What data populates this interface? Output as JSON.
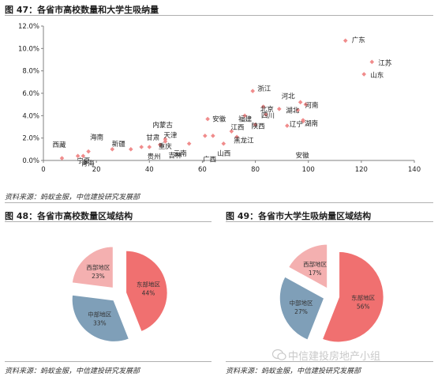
{
  "fig47": {
    "title": "图 47：各省市高校数量和大学生吸纳量",
    "source": "资料来源：蚂蚁金服，中信建投研究发展部"
  },
  "fig48": {
    "title": "图 48：各省市高校数量区域结构",
    "source": "资料来源：蚂蚁金服，中信建投研究发展部"
  },
  "fig49": {
    "title": "图 49：各省市大学生吸纳量区域结构",
    "source": "资料来源：蚂蚁金服，中信建投研究发展部"
  },
  "watermark": {
    "text": "中信建投房地产小组",
    "icon": "wechat-icon"
  },
  "colors": {
    "marker": "#f08c8c",
    "east": "#f07070",
    "central": "#7f9fb8",
    "west": "#f4b0b0"
  },
  "chart_data": [
    {
      "type": "scatter",
      "title": "",
      "xlabel": "",
      "ylabel": "",
      "xlim": [
        0,
        140
      ],
      "ylim": [
        0,
        0.12
      ],
      "xticks": [
        "0",
        "20",
        "40",
        "60",
        "80",
        "100",
        "120",
        "140"
      ],
      "yticks": [
        "0.0%",
        "2.0%",
        "4.0%",
        "6.0%",
        "8.0%",
        "10.0%",
        "12.0%"
      ],
      "grid": false,
      "points": [
        {
          "x": 114,
          "y": 0.107,
          "label": "广东"
        },
        {
          "x": 124,
          "y": 0.088,
          "label": "江苏"
        },
        {
          "x": 121,
          "y": 0.077,
          "label": "山东"
        },
        {
          "x": 79,
          "y": 0.062,
          "label": "浙江"
        },
        {
          "x": 97,
          "y": 0.052,
          "label": "河北"
        },
        {
          "x": 99,
          "y": 0.05,
          "label": "河南"
        },
        {
          "x": 96,
          "y": 0.045,
          "label": "湖北"
        },
        {
          "x": 89,
          "y": 0.046,
          "label": "北京"
        },
        {
          "x": 83,
          "y": 0.048,
          "label": ""
        },
        {
          "x": 84,
          "y": 0.041,
          "label": "四川"
        },
        {
          "x": 76,
          "y": 0.04,
          "label": "福建"
        },
        {
          "x": 98,
          "y": 0.036,
          "label": "湖南"
        },
        {
          "x": 92,
          "y": 0.031,
          "label": "辽宁"
        },
        {
          "x": 80,
          "y": 0.032,
          "label": "陕西"
        },
        {
          "x": 71,
          "y": 0.026,
          "label": "江西"
        },
        {
          "x": 62,
          "y": 0.037,
          "label": "安徽"
        },
        {
          "x": 98,
          "y": 0.035,
          "label": ""
        },
        {
          "x": 73,
          "y": 0.021,
          "label": "黑龙江"
        },
        {
          "x": 64,
          "y": 0.022,
          "label": ""
        },
        {
          "x": 61,
          "y": 0.022,
          "label": ""
        },
        {
          "x": 55,
          "y": 0.015,
          "label": "云南"
        },
        {
          "x": 68,
          "y": 0.015,
          "label": "山西"
        },
        {
          "x": 46,
          "y": 0.017,
          "label": "天津"
        },
        {
          "x": 46,
          "y": 0.019,
          "label": "内蒙古"
        },
        {
          "x": 44,
          "y": 0.014,
          "label": "重庆"
        },
        {
          "x": 40,
          "y": 0.012,
          "label": "甘肃"
        },
        {
          "x": 37,
          "y": 0.012,
          "label": ""
        },
        {
          "x": 33,
          "y": 0.01,
          "label": "新疆"
        },
        {
          "x": 26,
          "y": 0.01,
          "label": ""
        },
        {
          "x": 17,
          "y": 0.008,
          "label": "海南"
        },
        {
          "x": 15,
          "y": 0.004,
          "label": "宁夏"
        },
        {
          "x": 13,
          "y": 0.004,
          "label": "青海"
        },
        {
          "x": 7,
          "y": 0.002,
          "label": "西藏"
        }
      ],
      "extra_labels": [
        "贵州",
        "吉林",
        "广西",
        "安徽"
      ]
    },
    {
      "type": "pie",
      "title": "",
      "slices": [
        {
          "name": "东部地区",
          "value": 44,
          "label": "44%",
          "color": "#f07070"
        },
        {
          "name": "中部地区",
          "value": 33,
          "label": "33%",
          "color": "#7f9fb8"
        },
        {
          "name": "西部地区",
          "value": 23,
          "label": "23%",
          "color": "#f4b0b0"
        }
      ]
    },
    {
      "type": "pie",
      "title": "",
      "slices": [
        {
          "name": "东部地区",
          "value": 56,
          "label": "56%",
          "color": "#f07070"
        },
        {
          "name": "中部地区",
          "value": 27,
          "label": "27%",
          "color": "#7f9fb8"
        },
        {
          "name": "西部地区",
          "value": 17,
          "label": "17%",
          "color": "#f4b0b0"
        }
      ]
    }
  ]
}
